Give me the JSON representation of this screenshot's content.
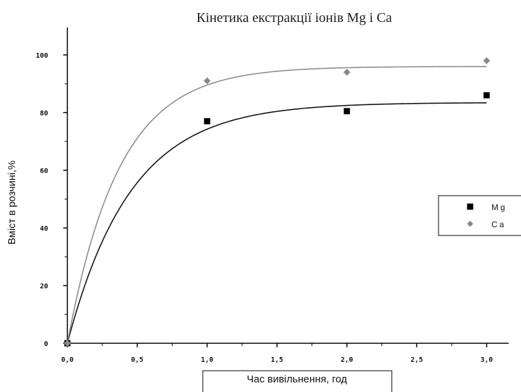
{
  "chart_data": {
    "type": "scatter",
    "title": "Кінетика екстракції іонів Mg i Ca",
    "xlabel": "Час вивільнення, год",
    "ylabel": "Вміст в розчині,%",
    "xlim": [
      0,
      3.2
    ],
    "ylim": [
      0,
      110
    ],
    "x_ticks": [
      "0,0",
      "0,5",
      "1,0",
      "1,5",
      "2,0",
      "2,5",
      "3,0"
    ],
    "x_tick_values": [
      0,
      0.5,
      1.0,
      1.5,
      2.0,
      2.5,
      3.0
    ],
    "y_ticks": [
      "0",
      "20",
      "40",
      "60",
      "80",
      "100"
    ],
    "y_tick_values": [
      0,
      20,
      40,
      60,
      80,
      100
    ],
    "grid": false,
    "legend_position": "right",
    "series": [
      {
        "name": "Mg",
        "marker": "square",
        "color": "#000000",
        "x": [
          0,
          1.0,
          2.0,
          3.0
        ],
        "y": [
          0,
          77,
          80.5,
          86
        ],
        "fit": {
          "model": "exponential",
          "a": 83.5,
          "k": 2.2
        }
      },
      {
        "name": "Ca",
        "marker": "diamond",
        "color": "#888888",
        "x": [
          0,
          1.0,
          2.0,
          3.0
        ],
        "y": [
          0,
          91,
          94,
          98
        ],
        "fit": {
          "model": "exponential",
          "a": 96,
          "k": 2.7
        }
      }
    ]
  }
}
